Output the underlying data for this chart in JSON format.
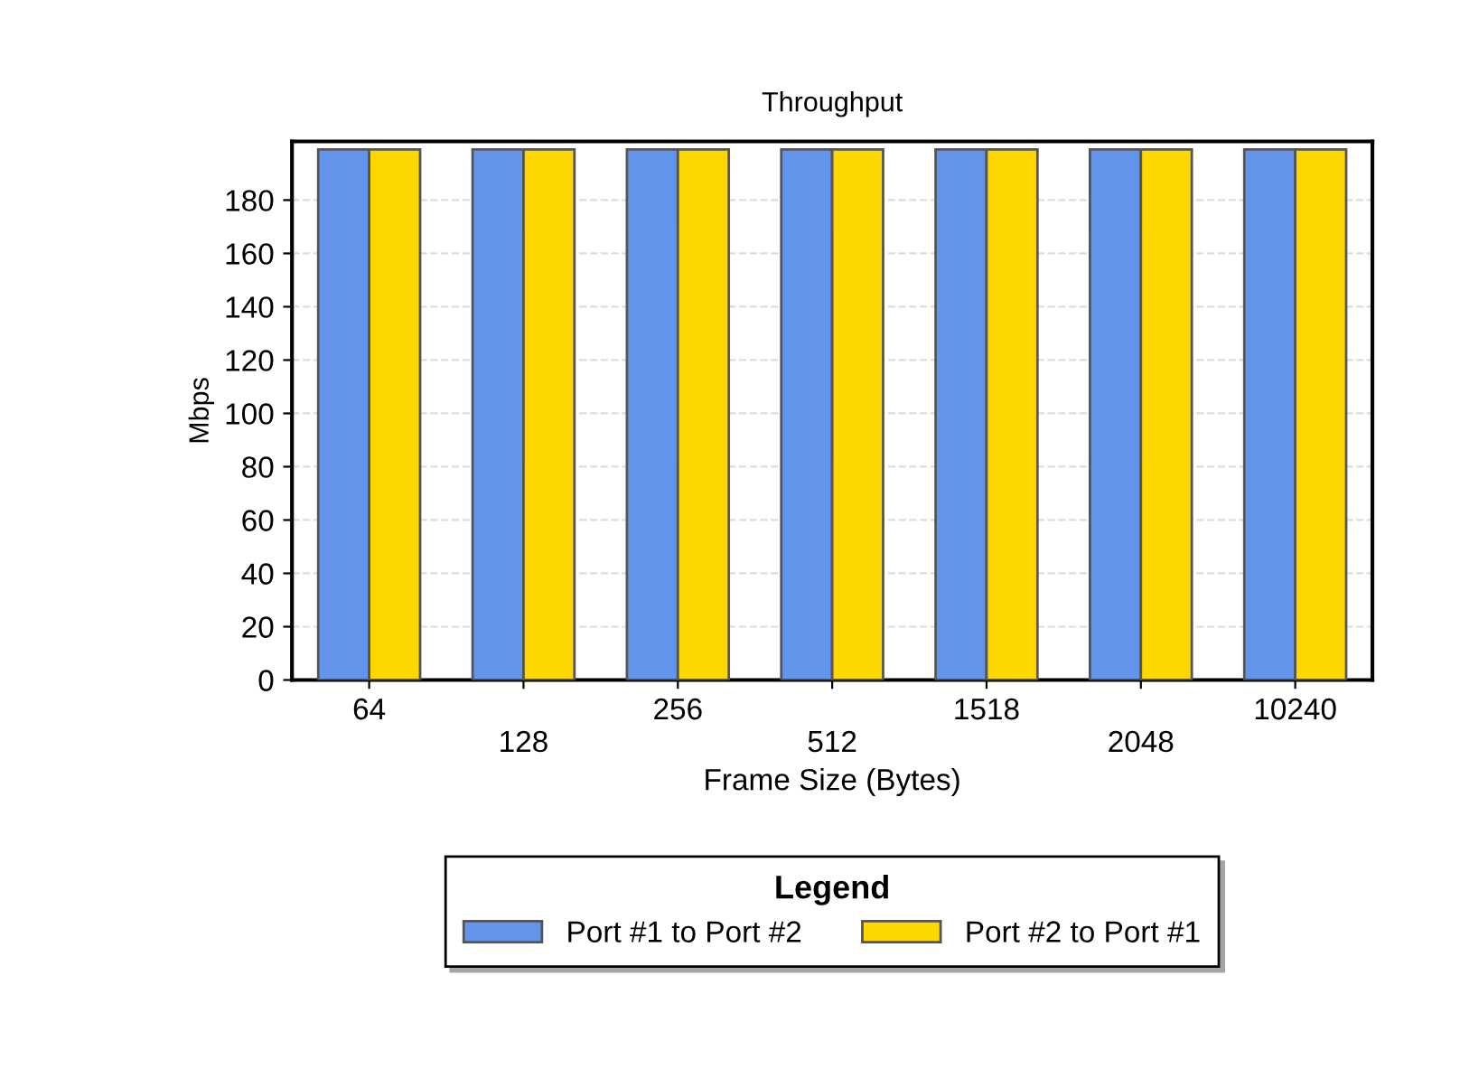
{
  "chart_data": {
    "type": "bar",
    "title": "Throughput",
    "xlabel": "Frame Size (Bytes)",
    "ylabel": "Mbps",
    "legend_title": "Legend",
    "categories": [
      "64",
      "128",
      "256",
      "512",
      "1518",
      "2048",
      "10240"
    ],
    "series": [
      {
        "name": "Port #1 to Port #2",
        "color": "#6495ed",
        "values": [
          199,
          199,
          199,
          199,
          199,
          199,
          199
        ]
      },
      {
        "name": "Port #2 to Port #1",
        "color": "#ffd700",
        "values": [
          199,
          199,
          199,
          199,
          199,
          199,
          199
        ]
      }
    ],
    "ylim": [
      0,
      202
    ],
    "yticks": [
      0,
      20,
      40,
      60,
      80,
      100,
      120,
      140,
      160,
      180
    ],
    "grid": "y",
    "legend": "bottom"
  }
}
